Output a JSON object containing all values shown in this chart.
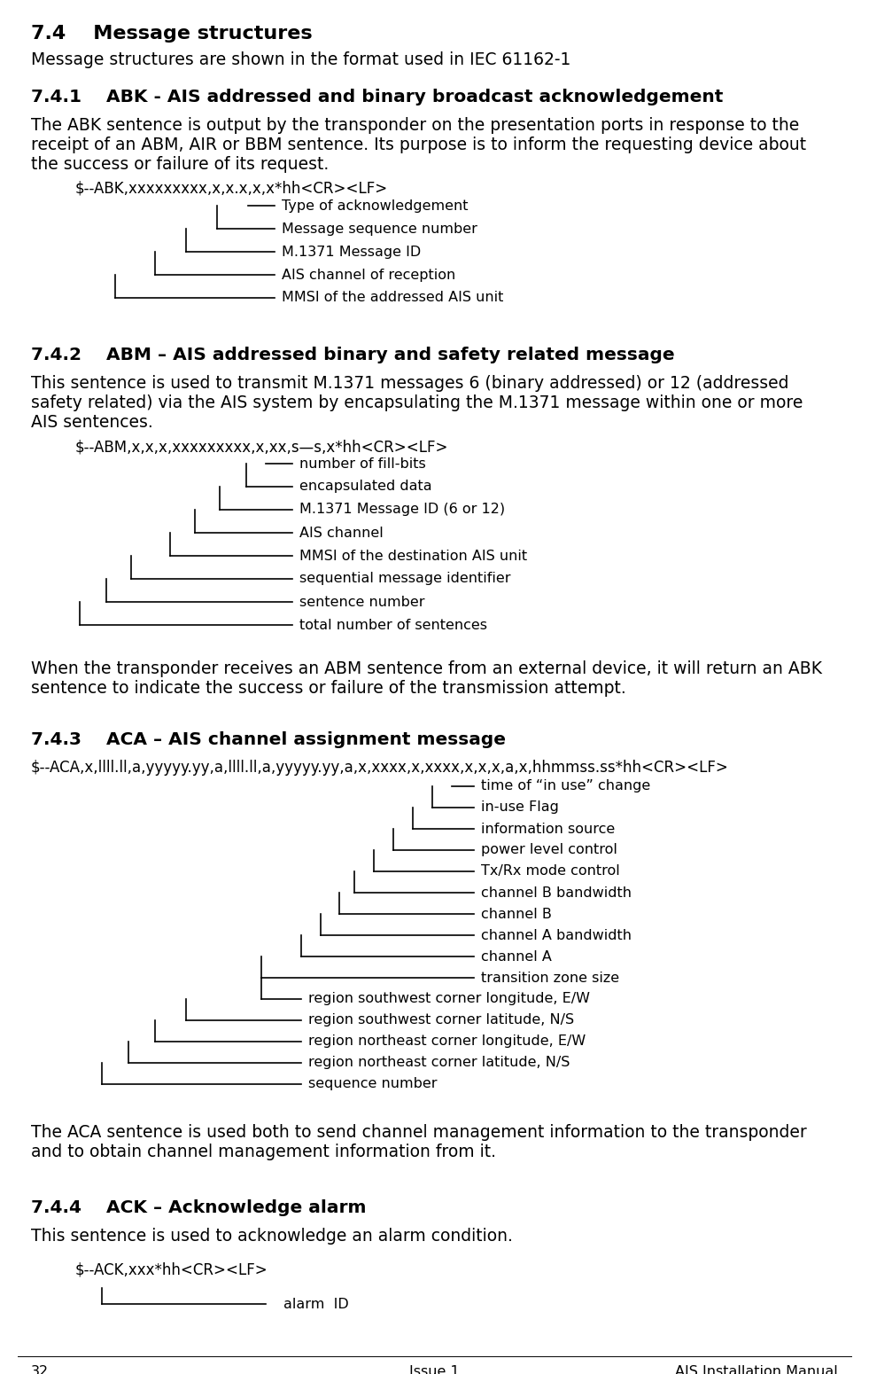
{
  "page_number": "32",
  "issue": "Issue 1",
  "manual": "AIS Installation Manual",
  "section_title": "7.4    Message structures",
  "section_subtitle": "Message structures are shown in the format used in IEC 61162-1",
  "sec741_title": "7.4.1    ABK - AIS addressed and binary broadcast acknowledgement",
  "sec741_body": "The ABK sentence is output by the transponder on the presentation ports in response to the\nreceipt of an ABM, AIR or BBM sentence. Its purpose is to inform the requesting device about\nthe success or failure of its request.",
  "sec741_sentence": "$--ABK,xxxxxxxxx,x,x.x,x,x*hh<CR><LF>",
  "sec741_labels": [
    "Type of acknowledgement",
    "Message sequence number",
    "M.1371 Message ID",
    "AIS channel of reception",
    "MMSI of the addressed AIS unit"
  ],
  "sec742_title": "7.4.2    ABM – AIS addressed binary and safety related message",
  "sec742_body": "This sentence is used to transmit M.1371 messages 6 (binary addressed) or 12 (addressed\nsafety related) via the AIS system by encapsulating the M.1371 message within one or more\nAIS sentences.",
  "sec742_sentence": "$--ABM,x,x,x,xxxxxxxxx,x,xx,s—s,x*hh<CR><LF>",
  "sec742_labels": [
    "number of fill-bits",
    "encapsulated data",
    "M.1371 Message ID (6 or 12)",
    "AIS channel",
    "MMSI of the destination AIS unit",
    "sequential message identifier",
    "sentence number",
    "total number of sentences"
  ],
  "sec742_note": "When the transponder receives an ABM sentence from an external device, it will return an ABK\nsentence to indicate the success or failure of the transmission attempt.",
  "sec743_title": "7.4.3    ACA – AIS channel assignment message",
  "sec743_sentence": "$--ACA,x,llll.ll,a,yyyyy.yy,a,llll.ll,a,yyyyy.yy,a,x,xxxx,x,xxxx,x,x,x,a,x,hhmmss.ss*hh<CR><LF>",
  "sec743_right_labels": [
    "time of “in use” change",
    "in-use Flag",
    "information source",
    "power level control",
    "Tx/Rx mode control",
    "channel B bandwidth",
    "channel B",
    "channel A bandwidth",
    "channel A",
    "transition zone size"
  ],
  "sec743_left_labels": [
    "region southwest corner longitude, E/W",
    "region southwest corner latitude, N/S",
    "region northeast corner longitude, E/W",
    "region northeast corner latitude, N/S",
    "sequence number"
  ],
  "sec743_note": "The ACA sentence is used both to send channel management information to the transponder\nand to obtain channel management information from it.",
  "sec744_title": "7.4.4    ACK – Acknowledge alarm",
  "sec744_body": "This sentence is used to acknowledge an alarm condition.",
  "sec744_sentence": "$--ACK,xxx*hh<CR><LF>",
  "sec744_labels": [
    "alarm  ID"
  ],
  "bg_color": "#ffffff",
  "text_color": "#000000",
  "line_color": "#000000",
  "font_size_body": 13.5,
  "font_size_sentence": 12.0,
  "font_size_label": 11.5,
  "font_size_section": 14.5,
  "font_size_main": 16.0,
  "font_size_footer": 11.5
}
